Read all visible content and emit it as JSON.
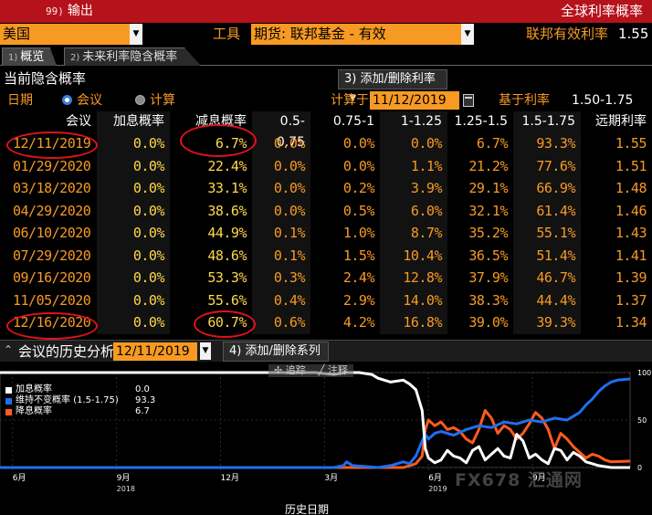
{
  "titlebar": {
    "menu_num": "99)",
    "menu_label": "输出",
    "window_title": "全球利率概率"
  },
  "toolbar": {
    "country_value": "美国",
    "tool_label": "工具",
    "instrument_value": "期货: 联邦基金 - 有效",
    "rate_label": "联邦有效利率",
    "rate_value": "1.55"
  },
  "tabs": [
    {
      "num": "1)",
      "label": "概览"
    },
    {
      "num": "2)",
      "label": "未来利率隐含概率"
    }
  ],
  "section": {
    "title": "当前隐含概率",
    "add_remove_label": "3) 添加/删除利率"
  },
  "options": {
    "date_label": "日期",
    "radio_meeting": "会议",
    "radio_calc": "计算",
    "calc_on_label": "计算于",
    "calc_on_value": "11/12/2019",
    "based_on_label": "基于利率",
    "based_on_value": "1.50-1.75"
  },
  "table": {
    "headers": [
      "会议",
      "加息概率",
      "减息概率",
      "0.5-0.75",
      "0.75-1",
      "1-1.25",
      "1.25-1.5",
      "1.5-1.75",
      "远期利率"
    ],
    "rows": [
      [
        "12/11/2019",
        "0.0%",
        "6.7%",
        "0.0%",
        "0.0%",
        "0.0%",
        "6.7%",
        "93.3%",
        "1.55"
      ],
      [
        "01/29/2020",
        "0.0%",
        "22.4%",
        "0.0%",
        "0.0%",
        "1.1%",
        "21.2%",
        "77.6%",
        "1.51"
      ],
      [
        "03/18/2020",
        "0.0%",
        "33.1%",
        "0.0%",
        "0.2%",
        "3.9%",
        "29.1%",
        "66.9%",
        "1.48"
      ],
      [
        "04/29/2020",
        "0.0%",
        "38.6%",
        "0.0%",
        "0.5%",
        "6.0%",
        "32.1%",
        "61.4%",
        "1.46"
      ],
      [
        "06/10/2020",
        "0.0%",
        "44.9%",
        "0.1%",
        "1.0%",
        "8.7%",
        "35.2%",
        "55.1%",
        "1.43"
      ],
      [
        "07/29/2020",
        "0.0%",
        "48.6%",
        "0.1%",
        "1.5%",
        "10.4%",
        "36.5%",
        "51.4%",
        "1.41"
      ],
      [
        "09/16/2020",
        "0.0%",
        "53.3%",
        "0.3%",
        "2.4%",
        "12.8%",
        "37.9%",
        "46.7%",
        "1.39"
      ],
      [
        "11/05/2020",
        "0.0%",
        "55.6%",
        "0.4%",
        "2.9%",
        "14.0%",
        "38.3%",
        "44.4%",
        "1.37"
      ],
      [
        "12/16/2020",
        "0.0%",
        "60.7%",
        "0.6%",
        "4.2%",
        "16.8%",
        "39.0%",
        "39.3%",
        "1.34"
      ]
    ]
  },
  "history": {
    "title": "会议的历史分析",
    "date_value": "12/11/2019",
    "add_remove_label": "4) 添加/删除系列",
    "tool_track": "追踪",
    "tool_annotate": "注释",
    "xaxis_title": "历史日期",
    "watermark": "FX678 汇通网"
  },
  "chart_data": {
    "type": "line",
    "legend": [
      {
        "name": "加息概率",
        "value": "0.0",
        "color": "#ffffff"
      },
      {
        "name": "维持不变概率 (1.5-1.75)",
        "value": "93.3",
        "color": "#1e6ff0"
      },
      {
        "name": "降息概率",
        "value": "6.7",
        "color": "#ff5a1f"
      }
    ],
    "y_ticks": [
      "100",
      "50",
      "0"
    ],
    "ylim": [
      0,
      100
    ],
    "x_ticks": [
      {
        "label": "6月",
        "pos": 0.02
      },
      {
        "label": "9月",
        "pos": 0.185
      },
      {
        "label": "12月",
        "pos": 0.35
      },
      {
        "label": "3月",
        "pos": 0.515
      },
      {
        "label": "6月",
        "pos": 0.68
      },
      {
        "label": "9月",
        "pos": 0.845
      }
    ],
    "x_years": [
      {
        "label": "2018",
        "pos": 0.185
      },
      {
        "label": "2019",
        "pos": 0.68
      }
    ],
    "series": [
      {
        "name": "加息概率",
        "color": "#ffffff",
        "x": [
          0.0,
          0.1,
          0.2,
          0.3,
          0.4,
          0.5,
          0.53,
          0.55,
          0.57,
          0.59,
          0.6,
          0.62,
          0.64,
          0.65,
          0.66,
          0.67,
          0.675,
          0.68,
          0.69,
          0.7,
          0.71,
          0.72,
          0.73,
          0.74,
          0.75,
          0.76,
          0.77,
          0.78,
          0.79,
          0.8,
          0.81,
          0.82,
          0.83,
          0.84,
          0.85,
          0.86,
          0.87,
          0.88,
          0.89,
          0.9,
          0.91,
          0.92,
          0.93,
          0.94,
          0.95,
          0.96,
          0.97,
          1.0
        ],
        "y": [
          100,
          100,
          100,
          100,
          100,
          100,
          98,
          100,
          100,
          98,
          94,
          90,
          92,
          88,
          82,
          60,
          20,
          10,
          5,
          8,
          18,
          12,
          10,
          5,
          18,
          22,
          8,
          14,
          20,
          12,
          10,
          35,
          28,
          10,
          14,
          8,
          4,
          20,
          18,
          8,
          16,
          12,
          6,
          4,
          2,
          1,
          0,
          0
        ]
      },
      {
        "name": "维持不变概率 (1.5-1.75)",
        "color": "#1e6ff0",
        "x": [
          0.0,
          0.1,
          0.2,
          0.3,
          0.4,
          0.5,
          0.53,
          0.545,
          0.55,
          0.56,
          0.6,
          0.62,
          0.64,
          0.65,
          0.66,
          0.67,
          0.675,
          0.68,
          0.69,
          0.7,
          0.72,
          0.74,
          0.76,
          0.78,
          0.8,
          0.82,
          0.84,
          0.86,
          0.88,
          0.9,
          0.91,
          0.92,
          0.93,
          0.94,
          0.95,
          0.96,
          0.97,
          0.98,
          1.0
        ],
        "y": [
          0,
          0,
          0,
          0,
          0,
          0,
          0,
          2,
          6,
          2,
          0,
          2,
          6,
          4,
          12,
          28,
          35,
          30,
          36,
          38,
          34,
          40,
          44,
          42,
          48,
          46,
          50,
          48,
          52,
          50,
          54,
          58,
          66,
          72,
          80,
          86,
          90,
          92,
          93.3
        ]
      },
      {
        "name": "降息概率",
        "color": "#ff5a1f",
        "x": [
          0.0,
          0.1,
          0.2,
          0.3,
          0.4,
          0.5,
          0.55,
          0.6,
          0.64,
          0.65,
          0.66,
          0.67,
          0.675,
          0.68,
          0.69,
          0.7,
          0.71,
          0.72,
          0.73,
          0.74,
          0.75,
          0.76,
          0.77,
          0.78,
          0.79,
          0.8,
          0.81,
          0.82,
          0.83,
          0.84,
          0.85,
          0.86,
          0.87,
          0.88,
          0.89,
          0.9,
          0.91,
          0.92,
          0.93,
          0.94,
          0.95,
          0.96,
          0.97,
          1.0
        ],
        "y": [
          0,
          0,
          0,
          0,
          0,
          0,
          0,
          0,
          0,
          2,
          4,
          12,
          40,
          50,
          44,
          48,
          40,
          42,
          38,
          30,
          26,
          40,
          60,
          52,
          36,
          44,
          40,
          30,
          36,
          46,
          58,
          52,
          40,
          20,
          36,
          30,
          22,
          16,
          10,
          14,
          12,
          8,
          6,
          6.7
        ]
      }
    ]
  }
}
